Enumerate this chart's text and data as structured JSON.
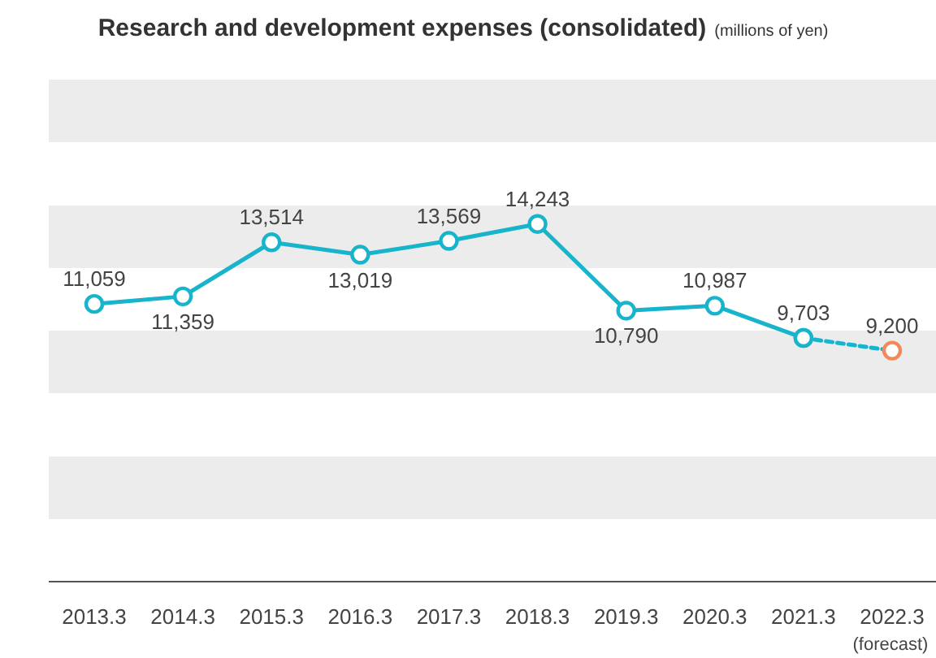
{
  "chart_data": {
    "type": "line",
    "title": "Research and development expenses (consolidated)",
    "subtitle": "(millions of yen)",
    "categories": [
      "2013.3",
      "2014.3",
      "2015.3",
      "2016.3",
      "2017.3",
      "2018.3",
      "2019.3",
      "2020.3",
      "2021.3",
      "2022.3"
    ],
    "series": [
      {
        "color": "#17b4cc",
        "values": [
          11059,
          11359,
          13514,
          13019,
          13569,
          14243,
          10790,
          10987,
          9703,
          null
        ],
        "value_labels": [
          "11,059",
          "11,359",
          "13,514",
          "13,019",
          "13,569",
          "14,243",
          "10,790",
          "10,987",
          "9,703",
          null
        ]
      },
      {
        "color": "#17b4cc",
        "line_style": "dashed",
        "colors": [
          null,
          null,
          null,
          null,
          null,
          null,
          null,
          null,
          "#17b4cc",
          "#f08a5d"
        ],
        "values": [
          null,
          null,
          null,
          null,
          null,
          null,
          null,
          null,
          9703,
          9200
        ],
        "value_labels": [
          null,
          null,
          null,
          null,
          null,
          null,
          null,
          null,
          null,
          "9,200"
        ]
      }
    ],
    "tick_labels": "x",
    "marker": "circle",
    "line_style": "solid",
    "annotations": [
      "(forecast)"
    ]
  }
}
